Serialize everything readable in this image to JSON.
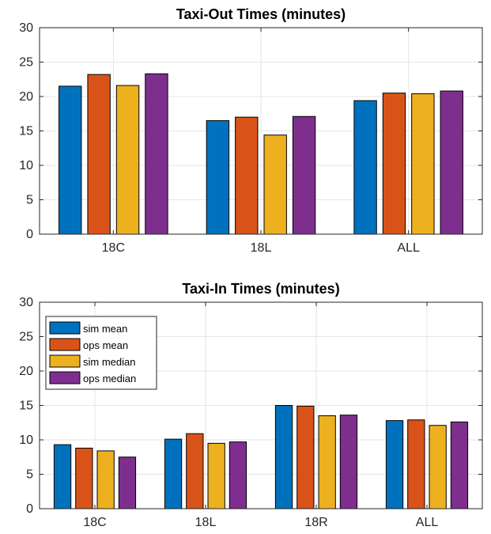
{
  "chart_data": [
    {
      "type": "bar",
      "title": "Taxi-Out Times (minutes)",
      "categories": [
        "18C",
        "18L",
        "ALL"
      ],
      "ylim": [
        0,
        30
      ],
      "yticks": [
        0,
        5,
        10,
        15,
        20,
        25,
        30
      ],
      "grid": true,
      "series": [
        {
          "name": "sim mean",
          "color": "#0072BD",
          "values": [
            21.5,
            16.5,
            19.4
          ]
        },
        {
          "name": "ops mean",
          "color": "#D95319",
          "values": [
            23.2,
            17.0,
            20.5
          ]
        },
        {
          "name": "sim median",
          "color": "#EDB120",
          "values": [
            21.6,
            14.4,
            20.4
          ]
        },
        {
          "name": "ops median",
          "color": "#7E2F8E",
          "values": [
            23.3,
            17.1,
            20.8
          ]
        }
      ]
    },
    {
      "type": "bar",
      "title": "Taxi-In Times (minutes)",
      "categories": [
        "18C",
        "18L",
        "18R",
        "ALL"
      ],
      "ylim": [
        0,
        30
      ],
      "yticks": [
        0,
        5,
        10,
        15,
        20,
        25,
        30
      ],
      "grid": true,
      "legend": "top-left",
      "series": [
        {
          "name": "sim mean",
          "color": "#0072BD",
          "values": [
            9.3,
            10.1,
            15.0,
            12.8
          ]
        },
        {
          "name": "ops mean",
          "color": "#D95319",
          "values": [
            8.8,
            10.9,
            14.9,
            12.9
          ]
        },
        {
          "name": "sim median",
          "color": "#EDB120",
          "values": [
            8.4,
            9.5,
            13.5,
            12.1
          ]
        },
        {
          "name": "ops median",
          "color": "#7E2F8E",
          "values": [
            7.5,
            9.7,
            13.6,
            12.6
          ]
        }
      ]
    }
  ]
}
